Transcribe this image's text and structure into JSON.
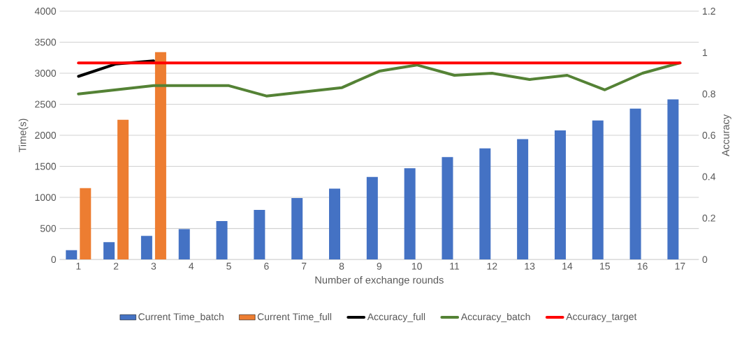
{
  "chart_data": {
    "type": "bar",
    "xlabel": "Number of exchange rounds",
    "ylabel": "Time(s)",
    "y2label": "Accuracy",
    "categories": [
      "1",
      "2",
      "3",
      "4",
      "5",
      "6",
      "7",
      "8",
      "9",
      "10",
      "11",
      "12",
      "13",
      "14",
      "15",
      "16",
      "17"
    ],
    "series": [
      {
        "name": "Current Time_batch",
        "color": "#4472c4",
        "values": [
          150,
          280,
          380,
          490,
          620,
          800,
          990,
          1140,
          1330,
          1470,
          1650,
          1790,
          1940,
          2080,
          2240,
          2430,
          2580
        ]
      },
      {
        "name": "Current Time_full",
        "color": "#ed7d31",
        "values": [
          1150,
          2250,
          3340,
          null,
          null,
          null,
          null,
          null,
          null,
          null,
          null,
          null,
          null,
          null,
          null,
          null,
          null
        ]
      },
      {
        "name": "Accuracy_full",
        "type": "line",
        "axis": "y2",
        "color": "#000000",
        "values": [
          0.885,
          0.945,
          0.96,
          null,
          null,
          null,
          null,
          null,
          null,
          null,
          null,
          null,
          null,
          null,
          null,
          null,
          null
        ]
      },
      {
        "name": "Accuracy_batch",
        "type": "line",
        "axis": "y2",
        "color": "#548235",
        "values": [
          0.8,
          0.82,
          0.84,
          0.84,
          0.84,
          0.79,
          0.81,
          0.83,
          0.91,
          0.94,
          0.89,
          0.9,
          0.87,
          0.89,
          0.82,
          0.9,
          0.95
        ]
      },
      {
        "name": "Accuracy_target",
        "type": "line",
        "axis": "y2",
        "color": "#ff0000",
        "values": [
          0.95,
          0.95,
          0.95,
          0.95,
          0.95,
          0.95,
          0.95,
          0.95,
          0.95,
          0.95,
          0.95,
          0.95,
          0.95,
          0.95,
          0.95,
          0.95,
          0.95
        ]
      }
    ],
    "ylim": [
      0,
      4000
    ],
    "yticks": [
      0,
      500,
      1000,
      1500,
      2000,
      2500,
      3000,
      3500,
      4000
    ],
    "y2lim": [
      0,
      1.2
    ],
    "y2ticks": [
      0,
      0.2,
      0.4,
      0.6,
      0.8,
      1,
      1.2
    ],
    "grid": "y",
    "legend": "bottom"
  }
}
